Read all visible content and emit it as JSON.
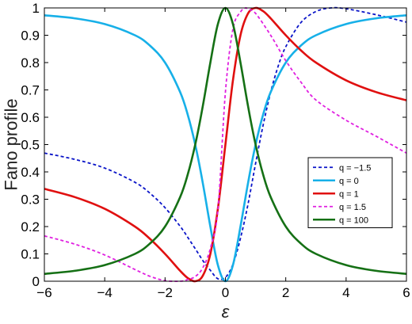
{
  "chart_data": {
    "type": "line",
    "title": "",
    "xlabel": "ε",
    "ylabel": "Fano profile",
    "xlim": [
      -6,
      6
    ],
    "ylim": [
      0,
      1
    ],
    "xticks": [
      "−6",
      "−4",
      "−2",
      "0",
      "2",
      "4",
      "6"
    ],
    "yticks": [
      "0",
      "0.1",
      "0.2",
      "0.3",
      "0.4",
      "0.5",
      "0.6",
      "0.7",
      "0.8",
      "0.9",
      "1"
    ],
    "grid": false,
    "legend_position": "center-right",
    "series": [
      {
        "name": "q = −1.5",
        "color": "#0a14c8",
        "dash": true,
        "points": [
          [
            -6,
            0.469
          ],
          [
            -5,
            0.446
          ],
          [
            -4,
            0.414
          ],
          [
            -3,
            0.362
          ],
          [
            -2.5,
            0.322
          ],
          [
            -2,
            0.269
          ],
          [
            -1.5,
            0.201
          ],
          [
            -1.25,
            0.161
          ],
          [
            -1,
            0.119
          ],
          [
            -0.75,
            0.076
          ],
          [
            -0.5,
            0.04
          ],
          [
            -0.25,
            0.009
          ],
          [
            0,
            0.014
          ],
          [
            0.25,
            0.062
          ],
          [
            0.5,
            0.157
          ],
          [
            0.75,
            0.283
          ],
          [
            1,
            0.431
          ],
          [
            1.25,
            0.571
          ],
          [
            1.5,
            0.692
          ],
          [
            1.75,
            0.787
          ],
          [
            2,
            0.858
          ],
          [
            2.5,
            0.946
          ],
          [
            3,
            0.987
          ],
          [
            3.5,
            1.0
          ],
          [
            4,
            0.997
          ],
          [
            5,
            0.975
          ],
          [
            6,
            0.948
          ]
        ]
      },
      {
        "name": "q = 0",
        "color": "#17b0e8",
        "dash": false,
        "points": [
          [
            -6,
            0.973
          ],
          [
            -5,
            0.962
          ],
          [
            -4,
            0.941
          ],
          [
            -3,
            0.9
          ],
          [
            -2.5,
            0.862
          ],
          [
            -2,
            0.8
          ],
          [
            -1.5,
            0.692
          ],
          [
            -1.25,
            0.61
          ],
          [
            -1,
            0.5
          ],
          [
            -0.75,
            0.36
          ],
          [
            -0.5,
            0.2
          ],
          [
            -0.25,
            0.059
          ],
          [
            0,
            0.0
          ],
          [
            0.25,
            0.059
          ],
          [
            0.5,
            0.2
          ],
          [
            0.75,
            0.36
          ],
          [
            1,
            0.5
          ],
          [
            1.25,
            0.61
          ],
          [
            1.5,
            0.692
          ],
          [
            2,
            0.8
          ],
          [
            2.5,
            0.862
          ],
          [
            3,
            0.9
          ],
          [
            4,
            0.941
          ],
          [
            5,
            0.962
          ],
          [
            6,
            0.973
          ]
        ]
      },
      {
        "name": "q = 1",
        "color": "#e01010",
        "dash": false,
        "points": [
          [
            -6,
            0.338
          ],
          [
            -5,
            0.308
          ],
          [
            -4,
            0.265
          ],
          [
            -3,
            0.2
          ],
          [
            -2.5,
            0.155
          ],
          [
            -2,
            0.1
          ],
          [
            -1.5,
            0.038
          ],
          [
            -1.25,
            0.012
          ],
          [
            -1,
            0.0
          ],
          [
            -0.75,
            0.02
          ],
          [
            -0.5,
            0.1
          ],
          [
            -0.25,
            0.265
          ],
          [
            0,
            0.5
          ],
          [
            0.25,
            0.735
          ],
          [
            0.5,
            0.9
          ],
          [
            0.75,
            0.98
          ],
          [
            1,
            1.0
          ],
          [
            1.25,
            0.988
          ],
          [
            1.5,
            0.962
          ],
          [
            2,
            0.9
          ],
          [
            2.5,
            0.845
          ],
          [
            3,
            0.8
          ],
          [
            4,
            0.735
          ],
          [
            5,
            0.692
          ],
          [
            6,
            0.662
          ]
        ]
      },
      {
        "name": "q = 1.5",
        "color": "#e020e0",
        "dash": true,
        "points": [
          [
            -6,
            0.166
          ],
          [
            -5,
            0.136
          ],
          [
            -4,
            0.096
          ],
          [
            -3,
            0.043
          ],
          [
            -2.5,
            0.018
          ],
          [
            -2,
            0.002
          ],
          [
            -1.5,
            0.0
          ],
          [
            -1.25,
            0.006
          ],
          [
            -1,
            0.017
          ],
          [
            -0.75,
            0.049
          ],
          [
            -0.5,
            0.12
          ],
          [
            -0.25,
            0.261
          ],
          [
            0,
            0.692
          ],
          [
            0.25,
            0.923
          ],
          [
            0.5,
            0.985
          ],
          [
            0.67,
            1.0
          ],
          [
            0.75,
            0.995
          ],
          [
            1,
            0.98
          ],
          [
            1.5,
            0.9
          ],
          [
            2,
            0.807
          ],
          [
            2.5,
            0.729
          ],
          [
            3,
            0.663
          ],
          [
            4,
            0.589
          ],
          [
            5,
            0.53
          ],
          [
            6,
            0.469
          ]
        ]
      },
      {
        "name": "q = 100",
        "color": "#157015",
        "dash": false,
        "points": [
          [
            -6,
            0.027
          ],
          [
            -5,
            0.038
          ],
          [
            -4,
            0.059
          ],
          [
            -3,
            0.1
          ],
          [
            -2.5,
            0.138
          ],
          [
            -2,
            0.2
          ],
          [
            -1.5,
            0.308
          ],
          [
            -1.25,
            0.39
          ],
          [
            -1,
            0.5
          ],
          [
            -0.75,
            0.64
          ],
          [
            -0.5,
            0.8
          ],
          [
            -0.25,
            0.941
          ],
          [
            0,
            1.0
          ],
          [
            0.25,
            0.941
          ],
          [
            0.5,
            0.8
          ],
          [
            0.75,
            0.64
          ],
          [
            1,
            0.5
          ],
          [
            1.25,
            0.39
          ],
          [
            1.5,
            0.308
          ],
          [
            2,
            0.2
          ],
          [
            2.5,
            0.138
          ],
          [
            3,
            0.1
          ],
          [
            4,
            0.059
          ],
          [
            5,
            0.038
          ],
          [
            6,
            0.027
          ]
        ]
      }
    ]
  }
}
